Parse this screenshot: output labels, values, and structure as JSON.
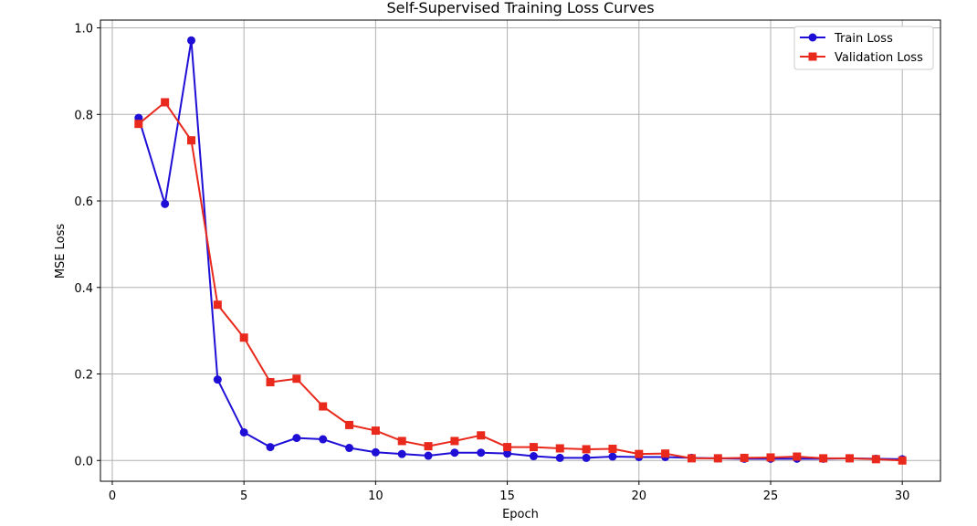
{
  "chart_data": {
    "type": "line",
    "title": "Self-Supervised Training Loss Curves",
    "xlabel": "Epoch",
    "ylabel": "MSE Loss",
    "xlim": [
      -0.45,
      31.45
    ],
    "ylim": [
      -0.048,
      1.018
    ],
    "x_ticks": [
      0,
      5,
      10,
      15,
      20,
      25,
      30
    ],
    "y_ticks": [
      0.0,
      0.2,
      0.4,
      0.6,
      0.8,
      1.0
    ],
    "x_tick_labels": [
      "0",
      "5",
      "10",
      "15",
      "20",
      "25",
      "30"
    ],
    "y_tick_labels": [
      "0.0",
      "0.2",
      "0.4",
      "0.6",
      "0.8",
      "1.0"
    ],
    "grid": true,
    "legend_position": "top-right",
    "x": [
      1,
      2,
      3,
      4,
      5,
      6,
      7,
      8,
      9,
      10,
      11,
      12,
      13,
      14,
      15,
      16,
      17,
      18,
      19,
      20,
      21,
      22,
      23,
      24,
      25,
      26,
      27,
      28,
      29,
      30
    ],
    "series": [
      {
        "name": "Train Loss",
        "color": "#1f0fd6",
        "marker": "circle",
        "values": [
          0.792,
          0.593,
          0.971,
          0.187,
          0.065,
          0.031,
          0.052,
          0.049,
          0.029,
          0.019,
          0.015,
          0.011,
          0.018,
          0.018,
          0.016,
          0.01,
          0.006,
          0.006,
          0.009,
          0.008,
          0.008,
          0.006,
          0.005,
          0.004,
          0.004,
          0.004,
          0.004,
          0.005,
          0.004,
          0.003
        ]
      },
      {
        "name": "Validation Loss",
        "color": "#e8291c",
        "marker": "square",
        "values": [
          0.778,
          0.828,
          0.74,
          0.36,
          0.284,
          0.181,
          0.189,
          0.125,
          0.082,
          0.069,
          0.045,
          0.033,
          0.045,
          0.058,
          0.031,
          0.031,
          0.028,
          0.026,
          0.027,
          0.015,
          0.016,
          0.005,
          0.005,
          0.006,
          0.007,
          0.009,
          0.005,
          0.005,
          0.003,
          0.0
        ]
      }
    ]
  }
}
